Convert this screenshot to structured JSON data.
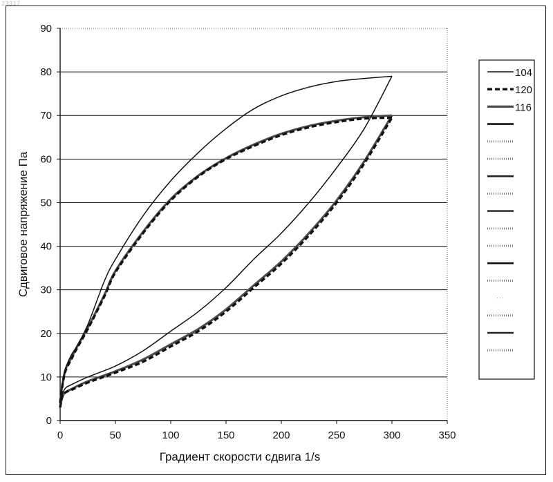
{
  "corner_code": "23317",
  "chart_data": {
    "type": "line",
    "title": "",
    "xlabel": "Градиент скорости сдвига 1/s",
    "ylabel": "Сдвиговое напряжение Па",
    "xlim": [
      0,
      350
    ],
    "ylim": [
      0,
      90
    ],
    "x_ticks": [
      0,
      50,
      100,
      150,
      200,
      250,
      300,
      350
    ],
    "y_ticks": [
      0,
      10,
      20,
      30,
      40,
      50,
      60,
      70,
      80,
      90
    ],
    "grid": "horizontal major gridlines",
    "legend_position": "right",
    "series": [
      {
        "name": "104",
        "style": "solid thin",
        "color": "#111111",
        "loop": true,
        "up": [
          [
            0,
            3
          ],
          [
            2,
            6
          ],
          [
            5,
            7.5
          ],
          [
            10,
            8.2
          ],
          [
            25,
            10
          ],
          [
            50,
            12.5
          ],
          [
            75,
            16
          ],
          [
            100,
            20.5
          ],
          [
            125,
            25
          ],
          [
            150,
            30.5
          ],
          [
            175,
            37
          ],
          [
            200,
            43
          ],
          [
            225,
            50
          ],
          [
            250,
            58
          ],
          [
            275,
            67
          ],
          [
            300,
            79
          ]
        ],
        "down": [
          [
            300,
            79
          ],
          [
            275,
            78.5
          ],
          [
            250,
            77.8
          ],
          [
            225,
            76.5
          ],
          [
            200,
            74.5
          ],
          [
            175,
            71.5
          ],
          [
            150,
            67
          ],
          [
            125,
            61.5
          ],
          [
            100,
            55
          ],
          [
            75,
            47
          ],
          [
            50,
            37
          ],
          [
            40,
            32
          ],
          [
            25,
            22
          ],
          [
            15,
            17
          ],
          [
            10,
            15
          ],
          [
            5,
            12
          ],
          [
            2,
            8
          ],
          [
            0,
            4
          ]
        ]
      },
      {
        "name": "120",
        "style": "dashed thick",
        "color": "#111111",
        "loop": true,
        "up": [
          [
            0,
            3
          ],
          [
            2,
            5.5
          ],
          [
            5,
            6.5
          ],
          [
            10,
            7
          ],
          [
            25,
            8.7
          ],
          [
            50,
            11
          ],
          [
            75,
            13.5
          ],
          [
            100,
            17
          ],
          [
            125,
            20.5
          ],
          [
            150,
            25
          ],
          [
            175,
            30.5
          ],
          [
            200,
            36
          ],
          [
            225,
            42.5
          ],
          [
            250,
            50
          ],
          [
            275,
            59
          ],
          [
            300,
            69.5
          ]
        ],
        "down": [
          [
            300,
            69.5
          ],
          [
            275,
            69.3
          ],
          [
            250,
            68.5
          ],
          [
            225,
            67.3
          ],
          [
            200,
            65.5
          ],
          [
            175,
            63
          ],
          [
            150,
            60
          ],
          [
            125,
            56
          ],
          [
            100,
            50.5
          ],
          [
            75,
            43
          ],
          [
            50,
            34
          ],
          [
            40,
            28.5
          ],
          [
            25,
            21
          ],
          [
            15,
            16.5
          ],
          [
            10,
            14
          ],
          [
            5,
            11.5
          ],
          [
            2,
            8
          ],
          [
            0,
            4
          ]
        ]
      },
      {
        "name": "116",
        "style": "solid thick grey",
        "color": "#4d4d4d",
        "loop": true,
        "up": [
          [
            0,
            3
          ],
          [
            2,
            5.5
          ],
          [
            5,
            6.5
          ],
          [
            10,
            7.2
          ],
          [
            25,
            9
          ],
          [
            50,
            11.3
          ],
          [
            75,
            14
          ],
          [
            100,
            17.5
          ],
          [
            125,
            21
          ],
          [
            150,
            25.5
          ],
          [
            175,
            31
          ],
          [
            200,
            36.5
          ],
          [
            225,
            43
          ],
          [
            250,
            50.5
          ],
          [
            275,
            59.5
          ],
          [
            300,
            70
          ]
        ],
        "down": [
          [
            300,
            70
          ],
          [
            275,
            69.6
          ],
          [
            250,
            68.8
          ],
          [
            225,
            67.6
          ],
          [
            200,
            65.8
          ],
          [
            175,
            63.3
          ],
          [
            150,
            60.2
          ],
          [
            125,
            56.2
          ],
          [
            100,
            50.8
          ],
          [
            75,
            43.3
          ],
          [
            50,
            34.3
          ],
          [
            40,
            28.8
          ],
          [
            25,
            21.3
          ],
          [
            15,
            16.8
          ],
          [
            10,
            14.3
          ],
          [
            5,
            11.8
          ],
          [
            2,
            8.2
          ],
          [
            0,
            4
          ]
        ]
      }
    ],
    "extra_legend_swatches": [
      {
        "style": "solid-thick",
        "color": "#111111"
      },
      {
        "style": "hatched",
        "color": "#777777"
      },
      {
        "style": "hatched",
        "color": "#777777"
      },
      {
        "style": "solid-thick",
        "color": "#222222"
      },
      {
        "style": "hatched",
        "color": "#777777"
      },
      {
        "style": "solid-thick",
        "color": "#333333"
      },
      {
        "style": "hatched",
        "color": "#777777"
      },
      {
        "style": "hatched",
        "color": "#777777"
      },
      {
        "style": "solid-thick",
        "color": "#111111"
      },
      {
        "style": "hatched",
        "color": "#777777"
      },
      {
        "style": "dots",
        "color": "#999999"
      },
      {
        "style": "hatched",
        "color": "#777777"
      },
      {
        "style": "solid-thick",
        "color": "#222222"
      },
      {
        "style": "hatched",
        "color": "#777777"
      }
    ]
  }
}
